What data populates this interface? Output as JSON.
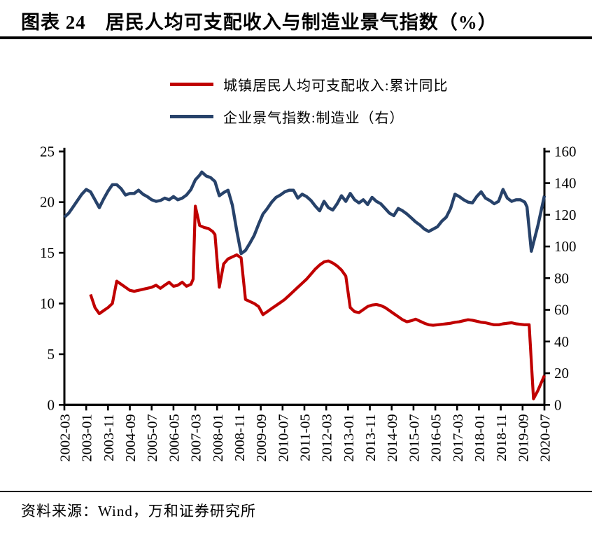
{
  "header": {
    "title": "图表 24　居民人均可支配收入与制造业景气指数（%）"
  },
  "legend": {
    "items": [
      {
        "label": "城镇居民人均可支配收入:累计同比",
        "color": "#c00000",
        "icon": "line-swatch"
      },
      {
        "label": "企业景气指数:制造业（右）",
        "color": "#27426a",
        "icon": "line-swatch"
      }
    ]
  },
  "footer": {
    "source": "资料来源：Wind，万和证券研究所"
  },
  "chart_data": {
    "type": "line",
    "grid": false,
    "legend_position": "top-center",
    "x_axis": {
      "start_label": "2002-03",
      "end_label": "2020-07",
      "months_span": 220,
      "tick_every_months": 10,
      "tick_labels": [
        "2002-03",
        "2003-01",
        "2003-11",
        "2004-09",
        "2005-07",
        "2006-05",
        "2007-03",
        "2008-01",
        "2008-11",
        "2009-09",
        "2010-07",
        "2011-05",
        "2012-03",
        "2013-01",
        "2013-11",
        "2014-09",
        "2015-07",
        "2016-05",
        "2017-03",
        "2018-01",
        "2018-11",
        "2019-09",
        "2020-07"
      ]
    },
    "y_axis_left": {
      "min": 0,
      "max": 25,
      "ticks": [
        0,
        5,
        10,
        15,
        20,
        25
      ]
    },
    "y_axis_right": {
      "min": 0,
      "max": 160,
      "ticks": [
        0,
        20,
        40,
        60,
        80,
        100,
        120,
        140,
        160
      ]
    },
    "series": [
      {
        "name": "城镇居民人均可支配收入:累计同比",
        "axis": "left",
        "color": "#c00000",
        "points": [
          [
            12,
            10.9
          ],
          [
            14,
            9.6
          ],
          [
            16,
            9.0
          ],
          [
            18,
            9.3
          ],
          [
            20,
            9.6
          ],
          [
            22,
            10.0
          ],
          [
            24,
            12.2
          ],
          [
            26,
            11.9
          ],
          [
            28,
            11.6
          ],
          [
            30,
            11.3
          ],
          [
            32,
            11.2
          ],
          [
            34,
            11.3
          ],
          [
            36,
            11.4
          ],
          [
            38,
            11.5
          ],
          [
            40,
            11.6
          ],
          [
            42,
            11.8
          ],
          [
            44,
            11.5
          ],
          [
            46,
            11.8
          ],
          [
            48,
            12.1
          ],
          [
            50,
            11.7
          ],
          [
            52,
            11.8
          ],
          [
            54,
            12.1
          ],
          [
            56,
            11.7
          ],
          [
            58,
            11.9
          ],
          [
            59,
            12.4
          ],
          [
            60,
            19.6
          ],
          [
            62,
            17.7
          ],
          [
            64,
            17.5
          ],
          [
            66,
            17.4
          ],
          [
            68,
            17.1
          ],
          [
            69,
            16.8
          ],
          [
            71,
            11.6
          ],
          [
            73,
            13.9
          ],
          [
            75,
            14.4
          ],
          [
            77,
            14.6
          ],
          [
            79,
            14.8
          ],
          [
            81,
            14.5
          ],
          [
            83,
            10.4
          ],
          [
            85,
            10.2
          ],
          [
            87,
            10.0
          ],
          [
            89,
            9.7
          ],
          [
            91,
            8.9
          ],
          [
            93,
            9.2
          ],
          [
            95,
            9.5
          ],
          [
            97,
            9.8
          ],
          [
            99,
            10.1
          ],
          [
            101,
            10.4
          ],
          [
            103,
            10.8
          ],
          [
            105,
            11.2
          ],
          [
            107,
            11.6
          ],
          [
            109,
            12.0
          ],
          [
            111,
            12.4
          ],
          [
            113,
            12.9
          ],
          [
            115,
            13.4
          ],
          [
            117,
            13.8
          ],
          [
            119,
            14.1
          ],
          [
            121,
            14.2
          ],
          [
            123,
            14.0
          ],
          [
            125,
            13.7
          ],
          [
            127,
            13.3
          ],
          [
            129,
            12.7
          ],
          [
            131,
            9.6
          ],
          [
            133,
            9.2
          ],
          [
            135,
            9.1
          ],
          [
            137,
            9.4
          ],
          [
            139,
            9.7
          ],
          [
            141,
            9.85
          ],
          [
            143,
            9.9
          ],
          [
            145,
            9.8
          ],
          [
            147,
            9.6
          ],
          [
            149,
            9.3
          ],
          [
            151,
            9.0
          ],
          [
            153,
            8.7
          ],
          [
            155,
            8.4
          ],
          [
            157,
            8.2
          ],
          [
            159,
            8.3
          ],
          [
            161,
            8.45
          ],
          [
            163,
            8.25
          ],
          [
            165,
            8.05
          ],
          [
            167,
            7.9
          ],
          [
            169,
            7.85
          ],
          [
            171,
            7.9
          ],
          [
            173,
            7.95
          ],
          [
            175,
            8.0
          ],
          [
            177,
            8.05
          ],
          [
            179,
            8.15
          ],
          [
            181,
            8.2
          ],
          [
            183,
            8.3
          ],
          [
            185,
            8.4
          ],
          [
            187,
            8.35
          ],
          [
            189,
            8.25
          ],
          [
            191,
            8.15
          ],
          [
            193,
            8.1
          ],
          [
            195,
            8.0
          ],
          [
            197,
            7.9
          ],
          [
            199,
            7.9
          ],
          [
            201,
            8.0
          ],
          [
            203,
            8.05
          ],
          [
            205,
            8.1
          ],
          [
            207,
            8.0
          ],
          [
            209,
            7.95
          ],
          [
            211,
            7.9
          ],
          [
            213,
            7.9
          ],
          [
            215,
            0.6
          ],
          [
            217,
            1.4
          ],
          [
            220,
            2.9
          ]
        ]
      },
      {
        "name": "企业景气指数:制造业（右）",
        "axis": "right",
        "color": "#27426a",
        "points": [
          [
            0,
            118.5
          ],
          [
            2,
            121
          ],
          [
            4,
            125
          ],
          [
            6,
            129
          ],
          [
            8,
            133
          ],
          [
            10,
            136
          ],
          [
            12,
            134.5
          ],
          [
            14,
            129.5
          ],
          [
            16,
            124.5
          ],
          [
            18,
            130
          ],
          [
            20,
            135
          ],
          [
            22,
            139
          ],
          [
            24,
            139
          ],
          [
            26,
            136.5
          ],
          [
            28,
            132.5
          ],
          [
            30,
            133.5
          ],
          [
            32,
            133.5
          ],
          [
            34,
            135.5
          ],
          [
            36,
            133
          ],
          [
            38,
            131.5
          ],
          [
            40,
            129.5
          ],
          [
            42,
            128.5
          ],
          [
            44,
            129
          ],
          [
            46,
            130.5
          ],
          [
            48,
            129.5
          ],
          [
            50,
            131.5
          ],
          [
            52,
            129.5
          ],
          [
            54,
            130.5
          ],
          [
            56,
            132.5
          ],
          [
            58,
            136
          ],
          [
            60,
            142
          ],
          [
            62,
            145
          ],
          [
            63,
            147
          ],
          [
            65,
            144.5
          ],
          [
            67,
            143.5
          ],
          [
            69,
            141
          ],
          [
            71,
            132
          ],
          [
            73,
            134
          ],
          [
            75,
            135.5
          ],
          [
            77,
            126
          ],
          [
            79,
            110
          ],
          [
            81,
            95.5
          ],
          [
            83,
            97.5
          ],
          [
            85,
            102
          ],
          [
            87,
            107
          ],
          [
            89,
            114
          ],
          [
            91,
            120.5
          ],
          [
            93,
            124
          ],
          [
            95,
            128
          ],
          [
            97,
            131
          ],
          [
            99,
            132.5
          ],
          [
            101,
            134.5
          ],
          [
            103,
            135.5
          ],
          [
            105,
            135.5
          ],
          [
            107,
            130.5
          ],
          [
            109,
            133
          ],
          [
            111,
            131.5
          ],
          [
            113,
            129
          ],
          [
            115,
            125.5
          ],
          [
            117,
            122.5
          ],
          [
            119,
            128.5
          ],
          [
            121,
            124.5
          ],
          [
            123,
            123
          ],
          [
            125,
            127
          ],
          [
            127,
            132
          ],
          [
            129,
            128.5
          ],
          [
            131,
            133.5
          ],
          [
            133,
            129.5
          ],
          [
            135,
            127.5
          ],
          [
            137,
            129.5
          ],
          [
            139,
            126.5
          ],
          [
            141,
            131
          ],
          [
            143,
            128.5
          ],
          [
            145,
            127
          ],
          [
            147,
            124
          ],
          [
            149,
            121
          ],
          [
            151,
            119.5
          ],
          [
            153,
            124
          ],
          [
            155,
            122.5
          ],
          [
            157,
            120.5
          ],
          [
            159,
            118
          ],
          [
            161,
            115.5
          ],
          [
            163,
            113.5
          ],
          [
            165,
            111
          ],
          [
            167,
            109.5
          ],
          [
            169,
            111
          ],
          [
            171,
            112.5
          ],
          [
            173,
            116
          ],
          [
            175,
            118.5
          ],
          [
            177,
            124
          ],
          [
            179,
            133
          ],
          [
            181,
            131.5
          ],
          [
            183,
            129.5
          ],
          [
            185,
            128
          ],
          [
            187,
            127.5
          ],
          [
            189,
            131.5
          ],
          [
            191,
            134.5
          ],
          [
            193,
            130.5
          ],
          [
            195,
            129
          ],
          [
            197,
            127
          ],
          [
            199,
            128.5
          ],
          [
            201,
            136
          ],
          [
            203,
            130.5
          ],
          [
            205,
            128.5
          ],
          [
            207,
            129.5
          ],
          [
            209,
            129.5
          ],
          [
            211,
            128
          ],
          [
            212,
            125
          ],
          [
            214,
            97
          ],
          [
            217,
            113
          ],
          [
            220,
            132
          ]
        ]
      }
    ]
  }
}
